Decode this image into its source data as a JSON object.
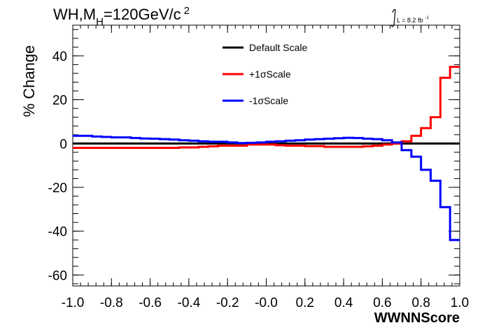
{
  "header": {
    "process": "WH,M",
    "mass_sub": "H",
    "mass_value": "=120GeV/c",
    "mass_sup": "2",
    "lumi_prefix": "L = 8.2 fb",
    "lumi_sup": "-1"
  },
  "chart_data": {
    "type": "line",
    "xlabel": "WWNNScore",
    "ylabel": "% Change",
    "xlim": [
      -1.0,
      1.0
    ],
    "ylim": [
      -65,
      54
    ],
    "x_ticks": [
      "-1.0",
      "-0.8",
      "-0.6",
      "-0.4",
      "-0.2",
      "-0.0",
      "0.2",
      "0.4",
      "0.6",
      "0.8",
      "1.0"
    ],
    "y_ticks": [
      "-60",
      "-40",
      "-20",
      "0",
      "20",
      "40"
    ],
    "grid": false,
    "legend_position": "top-center",
    "bin_edges": [
      -1.0,
      -0.95,
      -0.9,
      -0.85,
      -0.8,
      -0.75,
      -0.7,
      -0.65,
      -0.6,
      -0.55,
      -0.5,
      -0.45,
      -0.4,
      -0.35,
      -0.3,
      -0.25,
      -0.2,
      -0.15,
      -0.1,
      -0.05,
      0.0,
      0.05,
      0.1,
      0.15,
      0.2,
      0.25,
      0.3,
      0.35,
      0.4,
      0.45,
      0.5,
      0.55,
      0.6,
      0.65,
      0.7,
      0.75,
      0.8,
      0.85,
      0.9,
      0.95,
      1.0
    ],
    "series": [
      {
        "name": "Default Scale",
        "color": "#000000",
        "values": [
          0,
          0,
          0,
          0,
          0,
          0,
          0,
          0,
          0,
          0,
          0,
          0,
          0,
          0,
          0,
          0,
          0,
          0,
          0,
          0,
          0,
          0,
          0,
          0,
          0,
          0,
          0,
          0,
          0,
          0,
          0,
          0,
          0,
          0,
          0,
          0,
          0,
          0,
          0,
          0
        ]
      },
      {
        "name": "+1σScale",
        "color": "#ff0000",
        "values": [
          -2.0,
          -2.0,
          -2.0,
          -2.0,
          -2.0,
          -2.0,
          -2.0,
          -2.0,
          -2.0,
          -2.0,
          -2.0,
          -1.8,
          -1.8,
          -1.5,
          -1.3,
          -1.0,
          -1.0,
          -1.0,
          -0.5,
          -0.5,
          -0.5,
          -0.8,
          -1.0,
          -1.0,
          -1.2,
          -1.2,
          -1.5,
          -1.5,
          -1.5,
          -1.5,
          -1.3,
          -1.0,
          -0.5,
          0.0,
          1.0,
          3.5,
          7.0,
          12.0,
          30.0,
          35.0
        ]
      },
      {
        "name": "-1σScale",
        "color": "#0000ff",
        "values": [
          3.5,
          3.5,
          3.2,
          3.0,
          2.8,
          2.8,
          2.5,
          2.3,
          2.2,
          2.0,
          1.8,
          1.5,
          1.3,
          1.0,
          0.8,
          0.8,
          0.5,
          0.2,
          0.3,
          0.5,
          0.8,
          1.0,
          1.3,
          1.5,
          1.8,
          2.0,
          2.2,
          2.4,
          2.6,
          2.5,
          2.2,
          2.0,
          1.5,
          0.5,
          -3.0,
          -6.0,
          -12.0,
          -17.0,
          -29.0,
          -44.0
        ]
      }
    ]
  }
}
